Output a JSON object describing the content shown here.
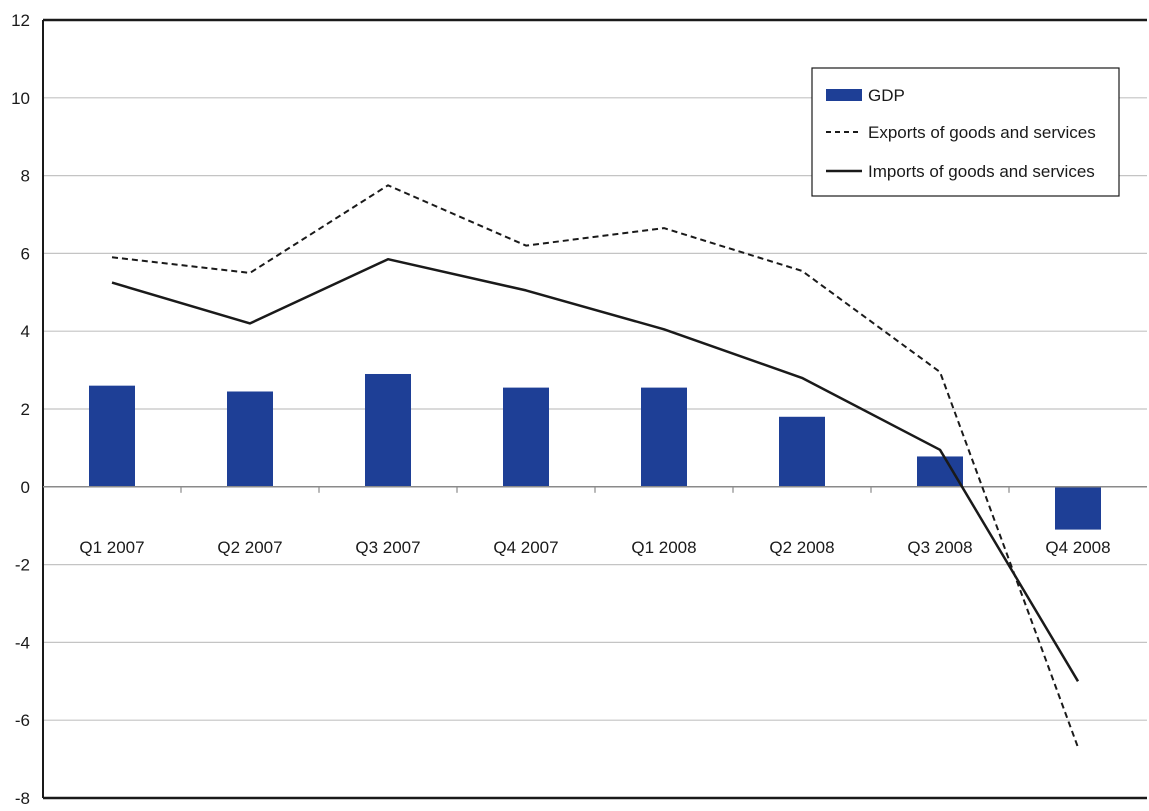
{
  "chart_data": {
    "type": "bar",
    "title": "",
    "xlabel": "",
    "ylabel": "",
    "ylim": [
      -8,
      12
    ],
    "yticks": [
      12,
      10,
      8,
      6,
      4,
      2,
      0,
      -2,
      -4,
      -6,
      -8
    ],
    "ytick_labels": [
      "12",
      "10",
      "8",
      "6",
      "4",
      "2",
      "0",
      "-2",
      "-4",
      "-6",
      "-8"
    ],
    "grid": true,
    "legend_position": "top-right",
    "categories": [
      "Q1 2007",
      "Q2 2007",
      "Q3 2007",
      "Q4 2007",
      "Q1 2008",
      "Q2 2008",
      "Q3 2008",
      "Q4 2008"
    ],
    "series": [
      {
        "name": "GDP",
        "kind": "bar",
        "color": "#1e3f96",
        "values": [
          2.6,
          2.45,
          2.9,
          2.55,
          2.55,
          1.8,
          0.78,
          -1.1
        ]
      },
      {
        "name": "Exports of goods and services",
        "kind": "line",
        "style": "dashed",
        "color": "#1a1a1a",
        "values": [
          5.9,
          5.5,
          7.75,
          6.2,
          6.65,
          5.55,
          2.95,
          -6.7
        ]
      },
      {
        "name": "Imports of goods and services",
        "kind": "line",
        "style": "solid",
        "color": "#1a1a1a",
        "values": [
          5.25,
          4.2,
          5.85,
          5.05,
          4.05,
          2.8,
          0.95,
          -5.0
        ]
      }
    ]
  }
}
